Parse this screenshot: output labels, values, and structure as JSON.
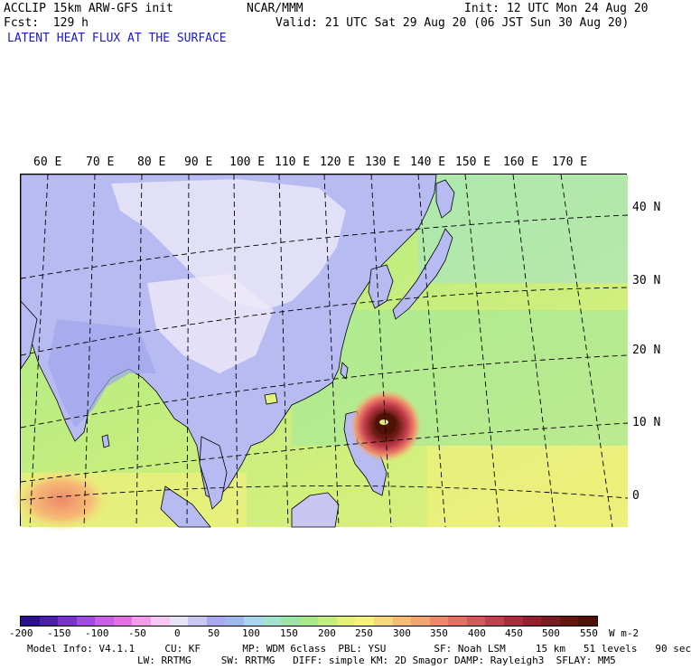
{
  "header": {
    "model_title": "ACCLIP 15km ARW-GFS init",
    "forecast": "Fcst:  129 h",
    "field_title": "LATENT HEAT FLUX AT THE SURFACE",
    "center": "NCAR/MMM",
    "init": "Init: 12 UTC Mon 24 Aug 20",
    "valid": "Valid: 21 UTC Sat 29 Aug 20 (06 JST Sun 30 Aug 20)"
  },
  "map": {
    "lon_labels": [
      "60 E",
      "70 E",
      "80 E",
      "90 E",
      "100 E",
      "110 E",
      "120 E",
      "130 E",
      "140 E",
      "150 E",
      "160 E",
      "170 E"
    ],
    "lat_labels": [
      "40 N",
      "30 N",
      "20 N",
      "10 N",
      "0"
    ]
  },
  "colorbar": {
    "ticks": [
      "-200",
      "-150",
      "-100",
      "-50",
      "0",
      "50",
      "100",
      "150",
      "200",
      "250",
      "300",
      "350",
      "400",
      "450",
      "500",
      "550"
    ],
    "unit": "W m-2",
    "colors": [
      "#2b0f8f",
      "#4a1fb0",
      "#7a2fcf",
      "#a24be0",
      "#c85fe6",
      "#e46fe3",
      "#f59bee",
      "#f7c7f4",
      "#e8e4f6",
      "#c9c6f2",
      "#a6a9f0",
      "#9fb9ee",
      "#a6d6f0",
      "#a3e4cf",
      "#9be6a4",
      "#a6ea8a",
      "#c6ee7e",
      "#e3f07a",
      "#f6f07c",
      "#f8d77a",
      "#f6bc76",
      "#f2a470",
      "#ee8a6a",
      "#e56f62",
      "#d8575a",
      "#c53e4e",
      "#ad2a3e",
      "#922030",
      "#7a1a22",
      "#64160f",
      "#4f1208"
    ]
  },
  "footer": {
    "line1": "Model Info: V4.1.1     CU: KF       MP: WDM 6class  PBL: YSU        SF: Noah LSM     15 km   51 levels   90 sec",
    "line2": "LW: RRTMG     SW: RRTMG   DIFF: simple KM: 2D Smagor DAMP: Rayleigh3  SFLAY: MM5"
  }
}
